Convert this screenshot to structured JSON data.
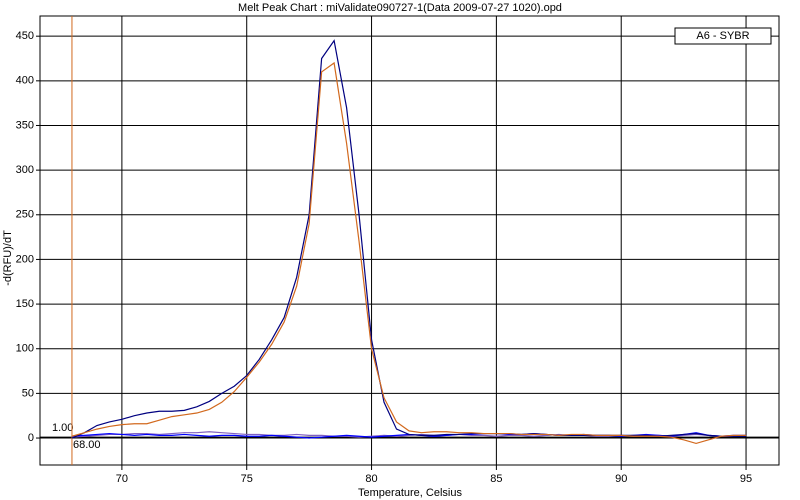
{
  "chart_data": {
    "type": "line",
    "title": "Melt Peak Chart : miValidate090727-1(Data 2009-07-27 1020).opd",
    "xlabel": "Temperature, Celsius",
    "ylabel": "-d(RFU)/dT",
    "legend_label": "A6 - SYBR",
    "legend_position": "upper right",
    "grid": true,
    "xlim": [
      66.72,
      96.32
    ],
    "ylim": [
      -30.2,
      472.6
    ],
    "xticks": [
      70,
      75,
      80,
      85,
      90,
      95
    ],
    "yticks": [
      0,
      50,
      100,
      150,
      200,
      250,
      300,
      350,
      400,
      450
    ],
    "threshold": {
      "value": 1,
      "label": "1.00",
      "color": "#000000"
    },
    "marker": {
      "value": 68,
      "label": "68.00",
      "color": "#d2691e"
    },
    "x": [
      68,
      68.5,
      69,
      69.5,
      70,
      70.5,
      71,
      71.5,
      72,
      72.5,
      73,
      73.5,
      74,
      74.5,
      75,
      75.5,
      76,
      76.5,
      77,
      77.5,
      78,
      78.5,
      79,
      79.5,
      80,
      80.5,
      81,
      81.5,
      82,
      82.5,
      83,
      83.5,
      84,
      84.5,
      85,
      85.5,
      86,
      86.5,
      87,
      87.5,
      88,
      88.5,
      89,
      89.5,
      90,
      90.5,
      91,
      91.5,
      92,
      92.5,
      93,
      93.5,
      94,
      94.5,
      95
    ],
    "series": [
      {
        "color": "#8060c0",
        "values": [
          1,
          2,
          3,
          4,
          4,
          5,
          5,
          4,
          5,
          6,
          6,
          7,
          6,
          5,
          4,
          4,
          3,
          3,
          4,
          3,
          3,
          2,
          2,
          1,
          2,
          3,
          2,
          3,
          4,
          3,
          3,
          4,
          3,
          3,
          2,
          3,
          3,
          2,
          3,
          4,
          3,
          3,
          2,
          2,
          3,
          2,
          3,
          3,
          2,
          3,
          4,
          3,
          2,
          2,
          3
        ]
      },
      {
        "color": "#0000ff",
        "values": [
          2,
          3,
          4,
          5,
          4,
          3,
          4,
          3,
          3,
          4,
          3,
          2,
          3,
          3,
          2,
          2,
          3,
          2,
          1,
          0,
          1,
          2,
          3,
          2,
          1,
          2,
          3,
          4,
          3,
          2,
          3,
          4,
          4,
          5,
          5,
          4,
          4,
          5,
          4,
          3,
          3,
          4,
          3,
          3,
          2,
          3,
          4,
          3,
          2,
          4,
          6,
          3,
          2,
          3,
          3
        ]
      },
      {
        "color": "#000080",
        "values": [
          0,
          6,
          14,
          18,
          21,
          25,
          28,
          30,
          30,
          31,
          35,
          41,
          50,
          58,
          70,
          88,
          110,
          135,
          180,
          250,
          425,
          445,
          370,
          250,
          110,
          40,
          10,
          4,
          3,
          3,
          4,
          4,
          5,
          5,
          5,
          5,
          4,
          5,
          4,
          3,
          3,
          3,
          3,
          3,
          3,
          3,
          3,
          2,
          3,
          4,
          5,
          3,
          2,
          2,
          2
        ]
      },
      {
        "color": "#d2691e",
        "values": [
          2,
          6,
          10,
          13,
          15,
          16,
          16,
          20,
          24,
          26,
          28,
          32,
          40,
          52,
          68,
          85,
          105,
          130,
          170,
          240,
          410,
          420,
          330,
          220,
          100,
          45,
          18,
          8,
          6,
          7,
          7,
          6,
          6,
          5,
          5,
          5,
          4,
          4,
          4,
          3,
          4,
          4,
          3,
          3,
          3,
          2,
          2,
          2,
          1,
          -2,
          -6,
          -2,
          2,
          3,
          3
        ]
      }
    ]
  }
}
